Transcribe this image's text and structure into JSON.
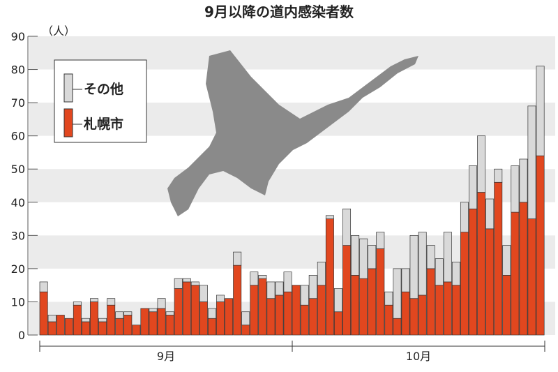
{
  "chart_data": {
    "type": "stacked_bar",
    "title": "9月以降の道内感染者数",
    "y_unit": "（人）",
    "categories": [
      "9月",
      "9月",
      "9月",
      "9月",
      "9月",
      "9月",
      "9月",
      "9月",
      "9月",
      "9月",
      "9月",
      "9月",
      "9月",
      "9月",
      "9月",
      "9月",
      "9月",
      "9月",
      "9月",
      "9月",
      "9月",
      "9月",
      "9月",
      "9月",
      "9月",
      "9月",
      "9月",
      "9月",
      "9月",
      "9月",
      "10月",
      "10月",
      "10月",
      "10月",
      "10月",
      "10月",
      "10月",
      "10月",
      "10月",
      "10月",
      "10月",
      "10月",
      "10月",
      "10月",
      "10月",
      "10月",
      "10月",
      "10月",
      "10月",
      "10月",
      "10月",
      "10月",
      "10月",
      "10月",
      "10月",
      "10月",
      "10月",
      "10月",
      "10月",
      "10月"
    ],
    "series": [
      {
        "name": "札幌市",
        "color": "#e1471f",
        "values": [
          13,
          4,
          6,
          5,
          9,
          4,
          10,
          4,
          9,
          5,
          6,
          3,
          8,
          7,
          8,
          6,
          14,
          16,
          15,
          10,
          5,
          10,
          11,
          21,
          3,
          15,
          17,
          11,
          12,
          13,
          15,
          9,
          11,
          15,
          35,
          7,
          27,
          18,
          17,
          20,
          26,
          9,
          5,
          13,
          11,
          12,
          20,
          15,
          16,
          15,
          31,
          38,
          43,
          32,
          46,
          18,
          37,
          40,
          35,
          54
        ]
      },
      {
        "name": "その他",
        "color": "#d9d9d9",
        "values": [
          3,
          2,
          0,
          0,
          1,
          1,
          1,
          1,
          2,
          2,
          1,
          0,
          0,
          1,
          3,
          1,
          3,
          1,
          1,
          5,
          3,
          2,
          0,
          4,
          4,
          4,
          1,
          5,
          4,
          6,
          0,
          6,
          7,
          7,
          1,
          7,
          11,
          12,
          12,
          7,
          5,
          4,
          15,
          7,
          19,
          19,
          7,
          8,
          15,
          7,
          9,
          13,
          17,
          9,
          4,
          9,
          14,
          13,
          34,
          27
        ]
      }
    ],
    "ylim": [
      0,
      90
    ],
    "yticks": [
      0,
      10,
      20,
      30,
      40,
      50,
      60,
      70,
      80,
      90
    ],
    "grid": "bands",
    "legend": "upper-left"
  }
}
